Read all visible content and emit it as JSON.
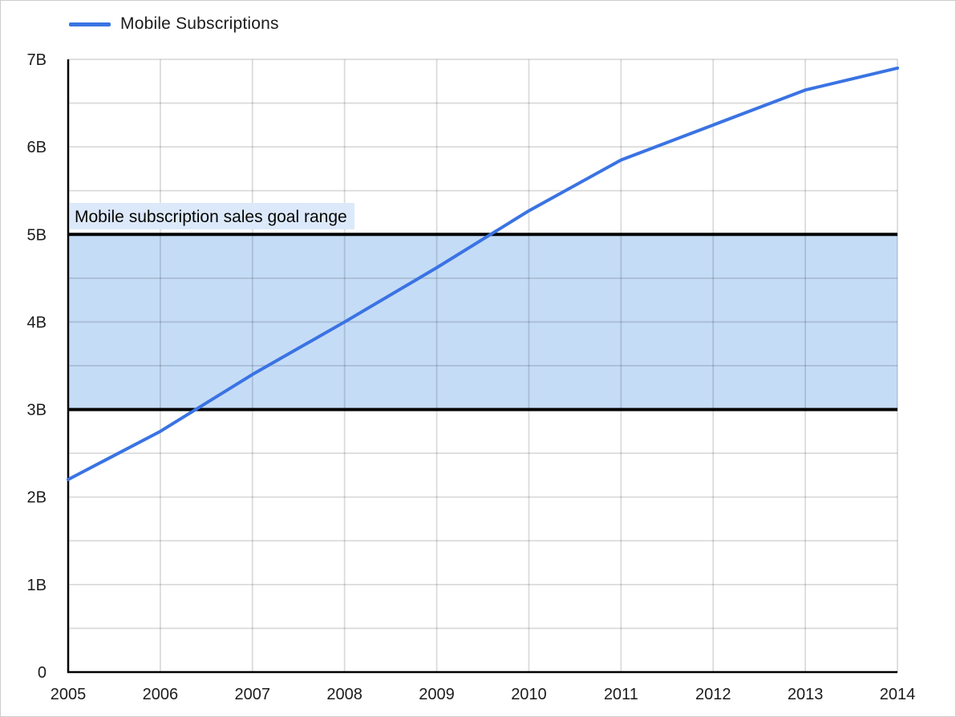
{
  "chart_data": {
    "type": "line",
    "title": "",
    "legend": {
      "position": "top-left",
      "entries": [
        {
          "label": "Mobile Subscriptions",
          "color": "#3a73e3"
        }
      ]
    },
    "x": [
      2005,
      2006,
      2007,
      2008,
      2009,
      2010,
      2011,
      2012,
      2013,
      2014
    ],
    "x_tick_labels": [
      "2005",
      "2006",
      "2007",
      "2008",
      "2009",
      "2010",
      "2011",
      "2012",
      "2013",
      "2014"
    ],
    "series": [
      {
        "name": "Mobile Subscriptions",
        "color": "#3a73e3",
        "values": [
          2.2,
          2.75,
          3.4,
          4.0,
          4.62,
          5.27,
          5.85,
          6.25,
          6.65,
          6.9
        ]
      }
    ],
    "ylim": [
      0,
      7
    ],
    "y_ticks": [
      {
        "value": 0,
        "label": "0"
      },
      {
        "value": 1,
        "label": "1B"
      },
      {
        "value": 2,
        "label": "2B"
      },
      {
        "value": 3,
        "label": "3B"
      },
      {
        "value": 4,
        "label": "4B"
      },
      {
        "value": 5,
        "label": "5B"
      },
      {
        "value": 6,
        "label": "6B"
      },
      {
        "value": 7,
        "label": "7B"
      }
    ],
    "y_minor_step": 0.5,
    "grid": true,
    "annotation_band": {
      "label": "Mobile subscription sales goal range",
      "from": 3,
      "to": 5,
      "fill": "#c5dcf7",
      "label_bg": "#dce9fb",
      "edge_color": "#000000"
    },
    "styles": {
      "gridline_opacity": 0.14,
      "axis_color": "#000000",
      "tick_text_color": "#1c1c1c",
      "background": "#ffffff",
      "frame_border": "#cccccc"
    }
  }
}
